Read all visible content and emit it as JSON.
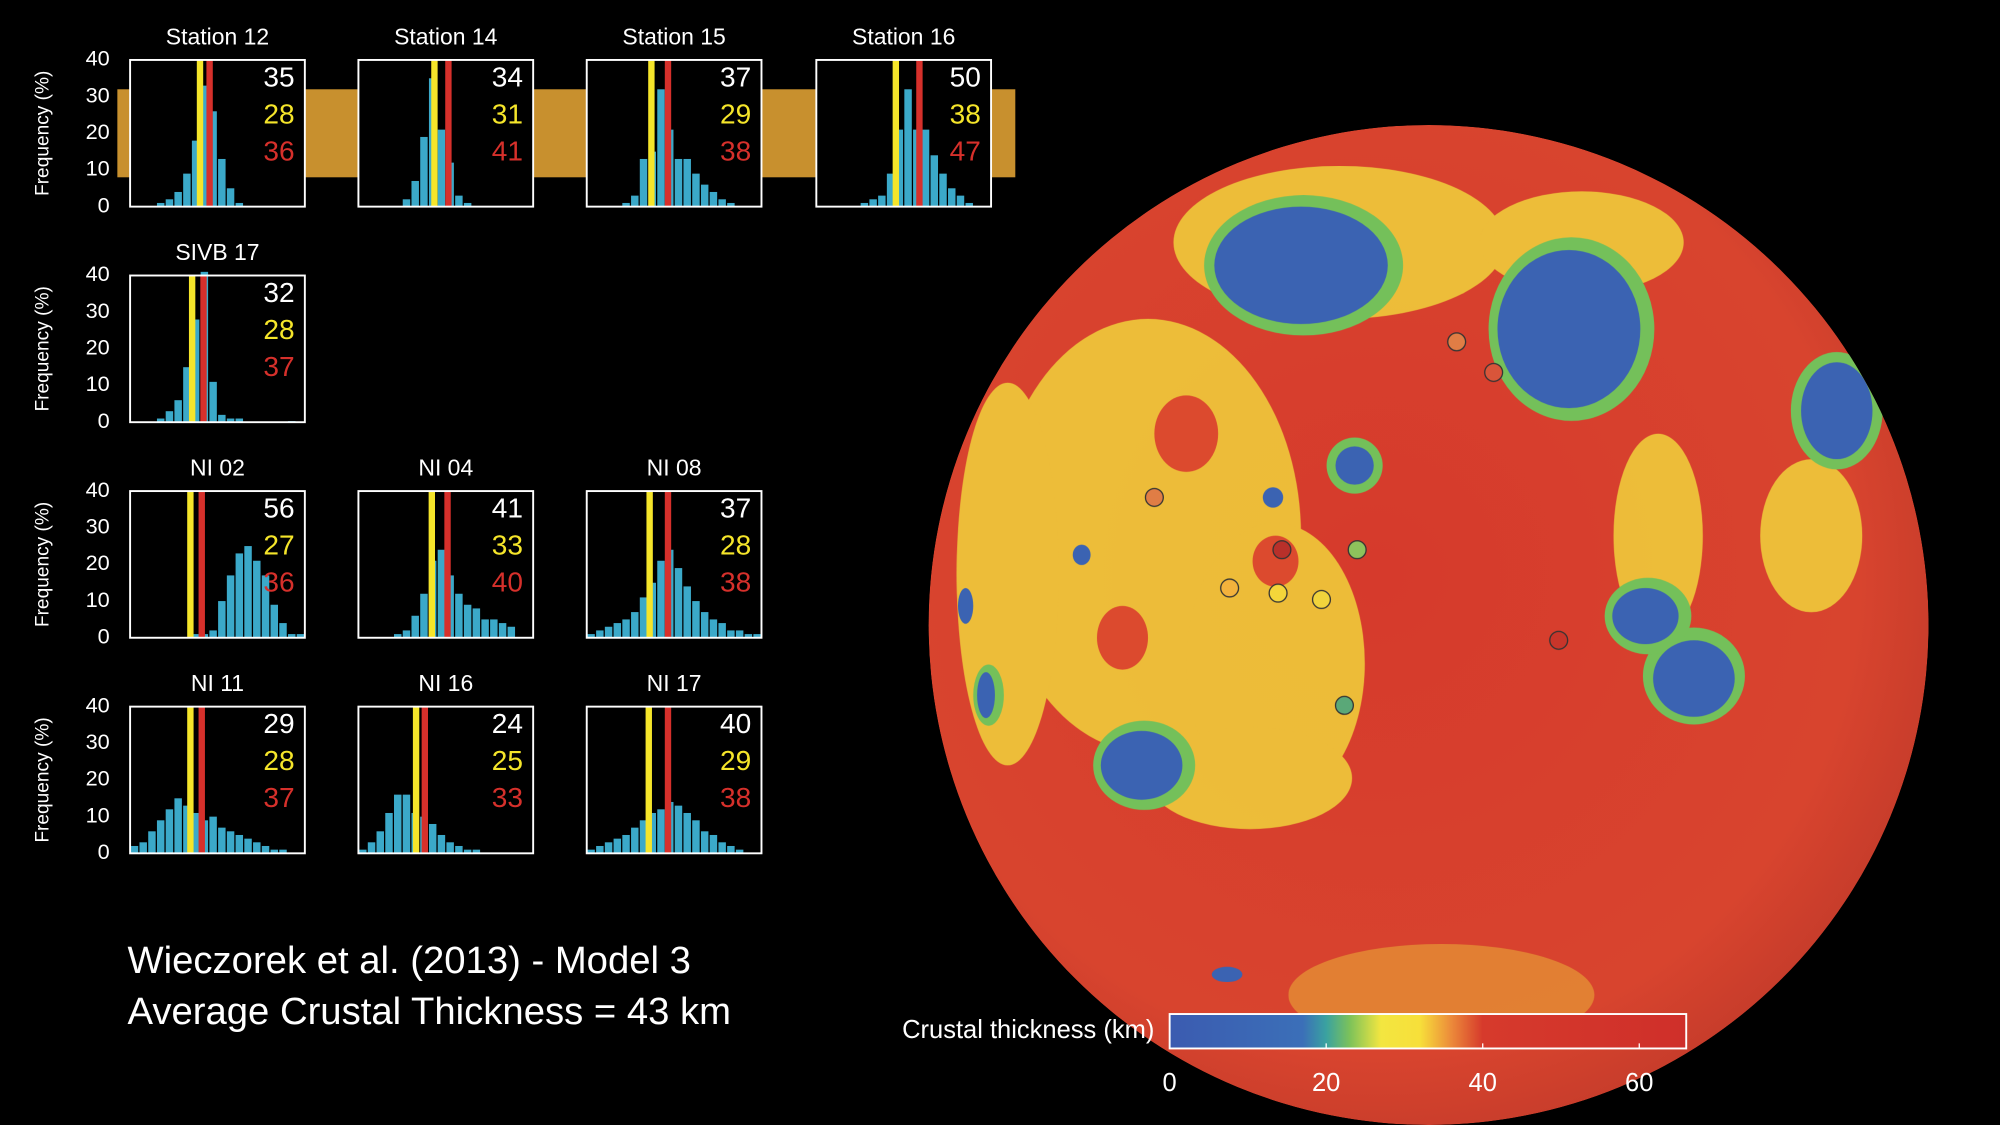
{
  "caption": [
    "Wieczorek et al. (2013) - Model 3",
    "Average Crustal Thickness = 43 km"
  ],
  "chart_data": [
    {
      "type": "histogram",
      "title": "Station 12",
      "ylabel": "Frequency (%)",
      "ylim": [
        0,
        40
      ],
      "yticks": [
        0,
        10,
        20,
        30,
        40
      ],
      "xlim": [
        0,
        20
      ],
      "bins": [
        0,
        1,
        2,
        3,
        4,
        5,
        6,
        7,
        8,
        9,
        10,
        11,
        12,
        13,
        14,
        15,
        16,
        17,
        18,
        19,
        20
      ],
      "values": [
        0,
        0,
        0,
        1,
        2,
        4,
        9,
        18,
        33,
        26,
        13,
        5,
        1,
        0,
        0,
        0,
        0,
        0,
        0,
        0
      ],
      "color": "#3ba9c9",
      "lines": [
        {
          "color": "#f5e52a",
          "x": 8
        },
        {
          "color": "#d6302b",
          "x": 9.1
        }
      ],
      "stats": [
        {
          "value": 35,
          "color": "#ffffff"
        },
        {
          "value": 28,
          "color": "#f5e52a"
        },
        {
          "value": 36,
          "color": "#d6302b"
        }
      ]
    },
    {
      "type": "histogram",
      "title": "Station 14",
      "ylim": [
        0,
        40
      ],
      "xlim": [
        0,
        20
      ],
      "bins": [
        0,
        1,
        2,
        3,
        4,
        5,
        6,
        7,
        8,
        9,
        10,
        11,
        12,
        13,
        14,
        15,
        16,
        17,
        18,
        19,
        20
      ],
      "values": [
        0,
        0,
        0,
        0,
        0,
        2,
        7,
        19,
        35,
        21,
        12,
        3,
        1,
        0,
        0,
        0,
        0,
        0,
        0,
        0
      ],
      "color": "#3ba9c9",
      "lines": [
        {
          "color": "#f5e52a",
          "x": 8.7
        },
        {
          "color": "#d6302b",
          "x": 10.3
        }
      ],
      "stats": [
        {
          "value": 34,
          "color": "#ffffff"
        },
        {
          "value": 31,
          "color": "#f5e52a"
        },
        {
          "value": 41,
          "color": "#d6302b"
        }
      ]
    },
    {
      "type": "histogram",
      "title": "Station 15",
      "ylim": [
        0,
        40
      ],
      "xlim": [
        0,
        20
      ],
      "bins": [
        0,
        1,
        2,
        3,
        4,
        5,
        6,
        7,
        8,
        9,
        10,
        11,
        12,
        13,
        14,
        15,
        16,
        17,
        18,
        19,
        20
      ],
      "values": [
        0,
        0,
        0,
        0,
        1,
        3,
        13,
        15,
        32,
        21,
        13,
        13,
        9,
        6,
        4,
        2,
        1,
        0,
        0,
        0
      ],
      "color": "#3ba9c9",
      "lines": [
        {
          "color": "#f5e52a",
          "x": 7.4
        },
        {
          "color": "#d6302b",
          "x": 9.3
        }
      ],
      "stats": [
        {
          "value": 37,
          "color": "#ffffff"
        },
        {
          "value": 29,
          "color": "#f5e52a"
        },
        {
          "value": 38,
          "color": "#d6302b"
        }
      ]
    },
    {
      "type": "histogram",
      "title": "Station 16",
      "ylim": [
        0,
        40
      ],
      "xlim": [
        0,
        20
      ],
      "bins": [
        0,
        1,
        2,
        3,
        4,
        5,
        6,
        7,
        8,
        9,
        10,
        11,
        12,
        13,
        14,
        15,
        16,
        17,
        18,
        19,
        20
      ],
      "values": [
        0,
        0,
        0,
        0,
        0,
        1,
        2,
        3,
        9,
        21,
        32,
        21,
        21,
        14,
        9,
        5,
        3,
        1,
        0,
        0
      ],
      "color": "#3ba9c9",
      "lines": [
        {
          "color": "#f5e52a",
          "x": 9.1
        },
        {
          "color": "#d6302b",
          "x": 11.8
        }
      ],
      "stats": [
        {
          "value": 50,
          "color": "#ffffff"
        },
        {
          "value": 38,
          "color": "#f5e52a"
        },
        {
          "value": 47,
          "color": "#d6302b"
        }
      ]
    },
    {
      "type": "histogram",
      "title": "SIVB 17",
      "ylabel": "Frequency (%)",
      "ylim": [
        0,
        40
      ],
      "yticks": [
        0,
        10,
        20,
        30,
        40
      ],
      "xlim": [
        0,
        20
      ],
      "bins": [
        0,
        1,
        2,
        3,
        4,
        5,
        6,
        7,
        8,
        9,
        10,
        11,
        12,
        13,
        14,
        15,
        16,
        17,
        18,
        19,
        20
      ],
      "values": [
        0,
        0,
        0,
        1,
        3,
        6,
        15,
        28,
        41,
        11,
        2,
        1,
        1,
        0,
        0,
        0,
        0,
        0,
        0.3,
        0
      ],
      "color": "#3ba9c9",
      "lines": [
        {
          "color": "#f5e52a",
          "x": 7.1
        },
        {
          "color": "#d6302b",
          "x": 8.4
        }
      ],
      "stats": [
        {
          "value": 32,
          "color": "#ffffff"
        },
        {
          "value": 28,
          "color": "#f5e52a"
        },
        {
          "value": 37,
          "color": "#d6302b"
        }
      ]
    },
    {
      "type": "histogram",
      "title": "NI 02",
      "ylabel": "Frequency (%)",
      "ylim": [
        0,
        40
      ],
      "yticks": [
        0,
        10,
        20,
        30,
        40
      ],
      "xlim": [
        0,
        20
      ],
      "bins": [
        0,
        1,
        2,
        3,
        4,
        5,
        6,
        7,
        8,
        9,
        10,
        11,
        12,
        13,
        14,
        15,
        16,
        17,
        18,
        19,
        20
      ],
      "values": [
        0,
        0,
        0,
        0,
        0,
        0,
        0,
        1,
        1,
        2,
        10,
        17,
        23,
        25,
        21,
        17,
        9,
        4,
        1,
        1
      ],
      "color": "#3ba9c9",
      "lines": [
        {
          "color": "#f5e52a",
          "x": 6.9
        },
        {
          "color": "#d6302b",
          "x": 8.2
        }
      ],
      "stats": [
        {
          "value": 56,
          "color": "#ffffff"
        },
        {
          "value": 27,
          "color": "#f5e52a"
        },
        {
          "value": 36,
          "color": "#d6302b"
        }
      ]
    },
    {
      "type": "histogram",
      "title": "NI 04",
      "ylim": [
        0,
        40
      ],
      "xlim": [
        0,
        20
      ],
      "bins": [
        0,
        1,
        2,
        3,
        4,
        5,
        6,
        7,
        8,
        9,
        10,
        11,
        12,
        13,
        14,
        15,
        16,
        17,
        18,
        19,
        20
      ],
      "values": [
        0,
        0,
        0,
        0,
        1,
        2,
        6,
        12,
        21,
        24,
        17,
        12,
        9,
        8,
        5,
        5,
        4,
        3,
        0,
        0
      ],
      "color": "#3ba9c9",
      "lines": [
        {
          "color": "#f5e52a",
          "x": 8.4
        },
        {
          "color": "#d6302b",
          "x": 10.2
        }
      ],
      "stats": [
        {
          "value": 41,
          "color": "#ffffff"
        },
        {
          "value": 33,
          "color": "#f5e52a"
        },
        {
          "value": 40,
          "color": "#d6302b"
        }
      ]
    },
    {
      "type": "histogram",
      "title": "NI 08",
      "ylim": [
        0,
        40
      ],
      "xlim": [
        0,
        20
      ],
      "bins": [
        0,
        1,
        2,
        3,
        4,
        5,
        6,
        7,
        8,
        9,
        10,
        11,
        12,
        13,
        14,
        15,
        16,
        17,
        18,
        19,
        20
      ],
      "values": [
        1,
        2,
        3,
        4,
        5,
        7,
        11,
        15,
        21,
        24,
        19,
        14,
        10,
        7,
        5,
        4,
        2,
        2,
        1,
        1
      ],
      "color": "#3ba9c9",
      "lines": [
        {
          "color": "#f5e52a",
          "x": 7.2
        },
        {
          "color": "#d6302b",
          "x": 9.3
        }
      ],
      "stats": [
        {
          "value": 37,
          "color": "#ffffff"
        },
        {
          "value": 28,
          "color": "#f5e52a"
        },
        {
          "value": 38,
          "color": "#d6302b"
        }
      ]
    },
    {
      "type": "histogram",
      "title": "NI 11",
      "ylabel": "Frequency (%)",
      "ylim": [
        0,
        40
      ],
      "yticks": [
        0,
        10,
        20,
        30,
        40
      ],
      "xlim": [
        0,
        20
      ],
      "bins": [
        0,
        1,
        2,
        3,
        4,
        5,
        6,
        7,
        8,
        9,
        10,
        11,
        12,
        13,
        14,
        15,
        16,
        17,
        18,
        19,
        20
      ],
      "values": [
        2,
        3,
        6,
        9,
        12,
        15,
        13,
        11,
        9,
        10,
        7,
        6,
        5,
        4,
        3,
        2,
        1,
        1,
        0,
        0
      ],
      "color": "#3ba9c9",
      "lines": [
        {
          "color": "#f5e52a",
          "x": 6.9
        },
        {
          "color": "#d6302b",
          "x": 8.2
        }
      ],
      "stats": [
        {
          "value": 29,
          "color": "#ffffff"
        },
        {
          "value": 28,
          "color": "#f5e52a"
        },
        {
          "value": 37,
          "color": "#d6302b"
        }
      ]
    },
    {
      "type": "histogram",
      "title": "NI 16",
      "ylim": [
        0,
        40
      ],
      "xlim": [
        0,
        20
      ],
      "bins": [
        0,
        1,
        2,
        3,
        4,
        5,
        6,
        7,
        8,
        9,
        10,
        11,
        12,
        13,
        14,
        15,
        16,
        17,
        18,
        19,
        20
      ],
      "values": [
        1,
        3,
        6,
        11,
        16,
        16,
        11,
        10,
        8,
        5,
        3,
        2,
        1,
        1,
        0,
        0,
        0,
        0,
        0,
        0
      ],
      "color": "#3ba9c9",
      "lines": [
        {
          "color": "#f5e52a",
          "x": 6.6
        },
        {
          "color": "#d6302b",
          "x": 7.6
        }
      ],
      "stats": [
        {
          "value": 24,
          "color": "#ffffff"
        },
        {
          "value": 25,
          "color": "#f5e52a"
        },
        {
          "value": 33,
          "color": "#d6302b"
        }
      ]
    },
    {
      "type": "histogram",
      "title": "NI 17",
      "ylim": [
        0,
        40
      ],
      "xlim": [
        0,
        20
      ],
      "bins": [
        0,
        1,
        2,
        3,
        4,
        5,
        6,
        7,
        8,
        9,
        10,
        11,
        12,
        13,
        14,
        15,
        16,
        17,
        18,
        19,
        20
      ],
      "values": [
        1,
        2,
        3,
        4,
        5,
        7,
        9,
        11,
        12,
        14,
        13,
        11,
        9,
        6,
        5,
        3,
        2,
        1,
        0,
        0
      ],
      "color": "#3ba9c9",
      "lines": [
        {
          "color": "#f5e52a",
          "x": 7.1
        },
        {
          "color": "#d6302b",
          "x": 9.3
        }
      ],
      "stats": [
        {
          "value": 40,
          "color": "#ffffff"
        },
        {
          "value": 29,
          "color": "#f5e52a"
        },
        {
          "value": 38,
          "color": "#d6302b"
        }
      ]
    },
    {
      "type": "colorbar",
      "title": "Crustal thickness (km)",
      "xlim": [
        0,
        66
      ],
      "xticks": [
        0,
        20,
        40,
        60
      ],
      "stops": [
        {
          "value": 0,
          "color": "#3b5bb0"
        },
        {
          "value": 17,
          "color": "#3b6fb8"
        },
        {
          "value": 20,
          "color": "#3aa2a0"
        },
        {
          "value": 23,
          "color": "#7cc25a"
        },
        {
          "value": 27,
          "color": "#f3e640"
        },
        {
          "value": 32,
          "color": "#f7df3a"
        },
        {
          "value": 36,
          "color": "#ec8a3a"
        },
        {
          "value": 40,
          "color": "#d63a2c"
        },
        {
          "value": 66,
          "color": "#cf2f2a"
        }
      ]
    }
  ]
}
